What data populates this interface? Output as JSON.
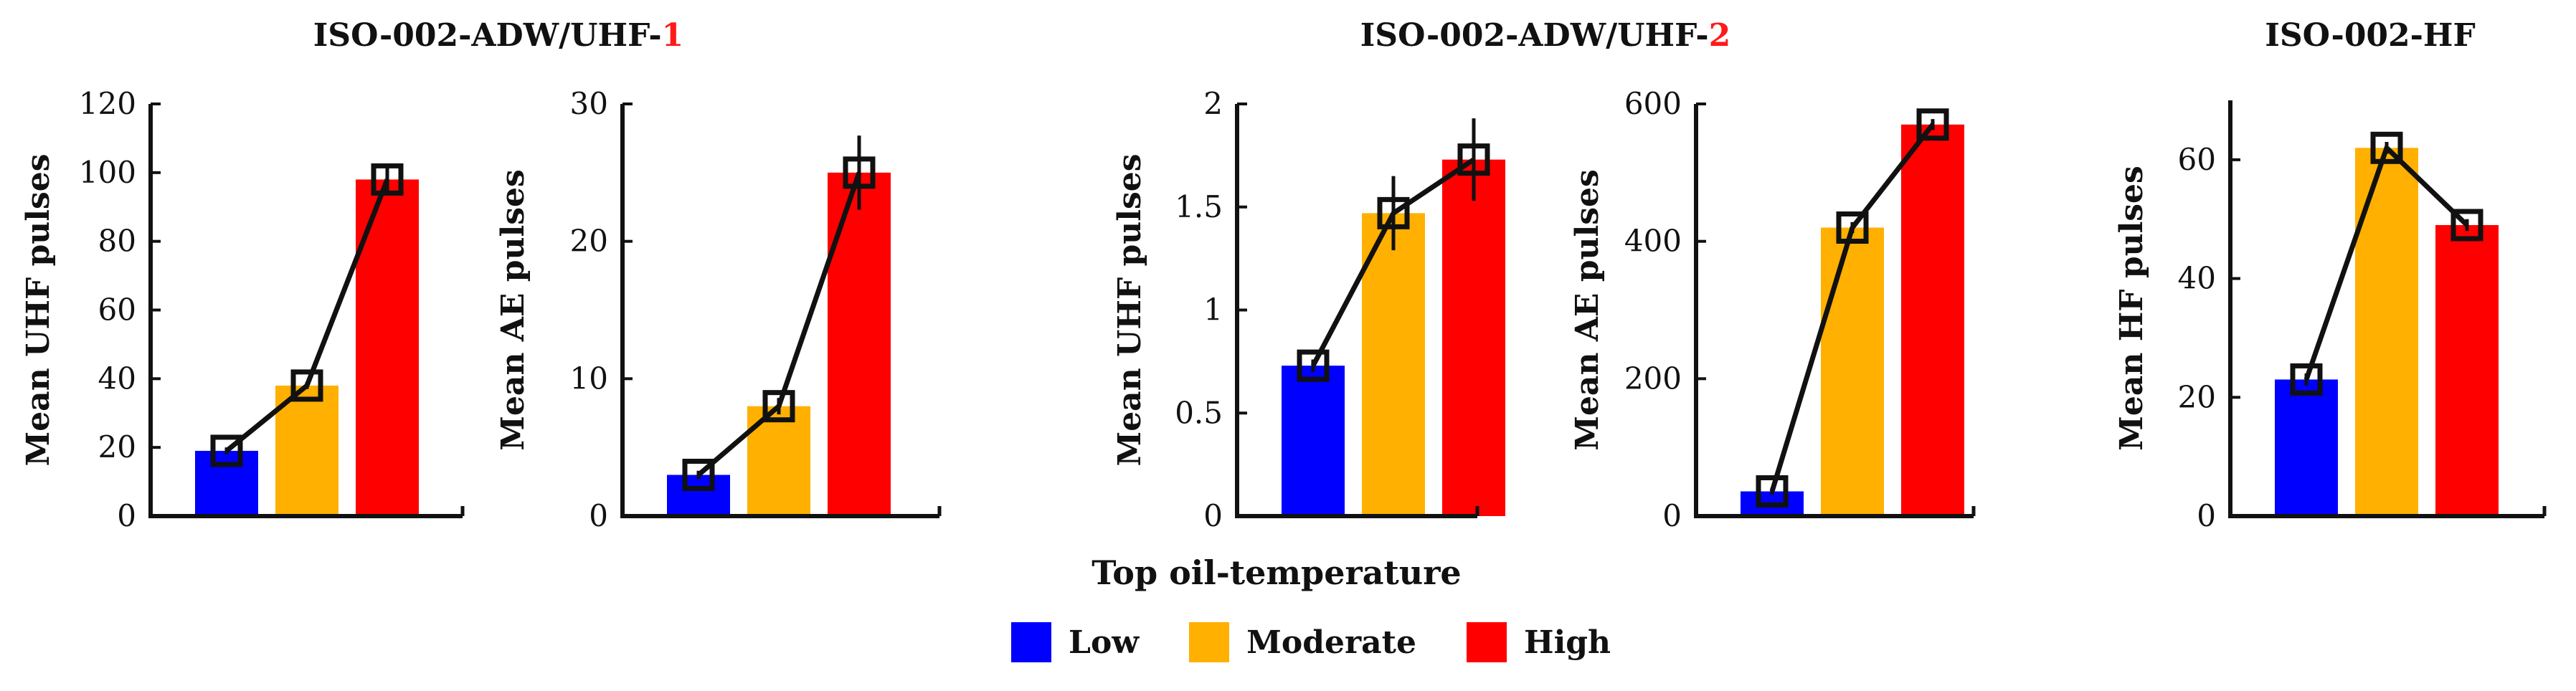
{
  "groups": [
    {
      "title": "ISO-002-ADW/UHF-",
      "suffix": "1"
    },
    {
      "title": "ISO-002-ADW/UHF-",
      "suffix": "2"
    },
    {
      "title": "ISO-002-HF",
      "suffix": ""
    }
  ],
  "xlabel": "Top oil-temperature",
  "legend": [
    {
      "label": "Low",
      "color": "#0000ff"
    },
    {
      "label": "Moderate",
      "color": "#ffb000"
    },
    {
      "label": "High",
      "color": "#ff0000"
    }
  ],
  "chart_data": [
    {
      "type": "bar",
      "group": "ISO-002-ADW/UHF-1",
      "ylabel": "Mean UHF pulses",
      "categories": [
        "Low",
        "Moderate",
        "High"
      ],
      "values": [
        19,
        38,
        98
      ],
      "errors": [
        1,
        1,
        4
      ],
      "ylim": [
        0,
        120
      ],
      "yticks": [
        0,
        20,
        40,
        60,
        80,
        100,
        120
      ]
    },
    {
      "type": "bar",
      "group": "ISO-002-ADW/UHF-1",
      "ylabel": "Mean AE pulses",
      "categories": [
        "Low",
        "Moderate",
        "High"
      ],
      "values": [
        3,
        8,
        25
      ],
      "errors": [
        0.3,
        0.6,
        2.7
      ],
      "ylim": [
        0,
        30
      ],
      "yticks": [
        0,
        10,
        20,
        30
      ]
    },
    {
      "type": "bar",
      "group": "ISO-002-ADW/UHF-2",
      "ylabel": "Mean UHF pulses",
      "categories": [
        "Low",
        "Moderate",
        "High"
      ],
      "values": [
        0.73,
        1.47,
        1.73
      ],
      "errors": [
        0.03,
        0.18,
        0.2
      ],
      "ylim": [
        0,
        2
      ],
      "yticks": [
        0,
        0.5,
        1,
        1.5,
        2
      ],
      "yticklabels": [
        "0",
        "0.5",
        "1",
        "1.5",
        "2"
      ]
    },
    {
      "type": "bar",
      "group": "ISO-002-ADW/UHF-2",
      "ylabel": "Mean AE pulses",
      "categories": [
        "Low",
        "Moderate",
        "High"
      ],
      "values": [
        36,
        420,
        570
      ],
      "errors": [
        5,
        8,
        8
      ],
      "ylim": [
        0,
        600
      ],
      "yticks": [
        0,
        200,
        400,
        600
      ]
    },
    {
      "type": "bar",
      "group": "ISO-002-HF",
      "ylabel": "Mean HF pulses",
      "categories": [
        "Low",
        "Moderate",
        "High"
      ],
      "values": [
        23,
        62,
        49
      ],
      "errors": [
        1,
        1,
        1
      ],
      "ylim": [
        0,
        70
      ],
      "yticks": [
        0,
        20,
        40,
        60
      ]
    }
  ]
}
